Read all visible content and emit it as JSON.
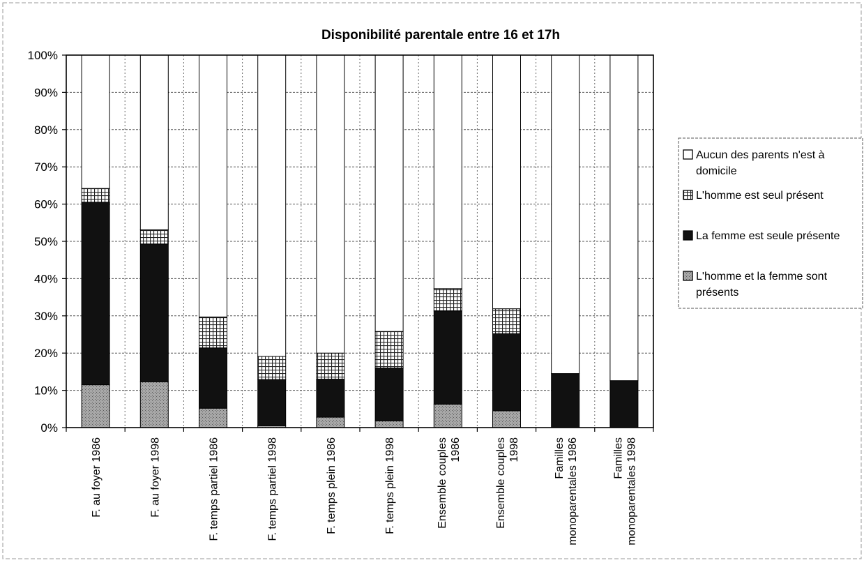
{
  "chart_data": {
    "type": "bar",
    "stacked": true,
    "percent": true,
    "title": "Disponibilité parentale entre 16 et 17h",
    "xlabel": "",
    "ylabel": "",
    "ylim": [
      0,
      100
    ],
    "y_ticks": [
      "0%",
      "10%",
      "20%",
      "30%",
      "40%",
      "50%",
      "60%",
      "70%",
      "80%",
      "90%",
      "100%"
    ],
    "grid": true,
    "legend_position": "right",
    "categories": [
      [
        "F. au foyer 1986"
      ],
      [
        "F. au foyer 1998"
      ],
      [
        "F. temps partiel 1986"
      ],
      [
        "F. temps partiel 1998"
      ],
      [
        "F. temps plein 1986"
      ],
      [
        "F. temps plein 1998"
      ],
      [
        "Ensemble couples",
        "1986"
      ],
      [
        "Ensemble couples",
        "1998"
      ],
      [
        "Familles",
        "monoparentales 1986"
      ],
      [
        "Familles",
        "monoparentales 1998"
      ]
    ],
    "series": [
      {
        "name": "L'homme et la femme sont présents",
        "legend_lines": [
          "L'homme et la femme sont",
          "présents"
        ],
        "pattern": "dots",
        "values": [
          11.5,
          12.3,
          5.2,
          0.5,
          2.8,
          1.8,
          6.3,
          4.5,
          0,
          0
        ]
      },
      {
        "name": "La femme est seule présente",
        "legend_lines": [
          "La femme est seule présente"
        ],
        "pattern": "solid",
        "values": [
          49,
          37,
          16.2,
          12.4,
          10.2,
          14.2,
          25,
          20.7,
          14.5,
          12.6
        ]
      },
      {
        "name": "L'homme est seul présent",
        "legend_lines": [
          "L'homme est seul présent"
        ],
        "pattern": "grid",
        "values": [
          3.7,
          3.8,
          8.3,
          6.2,
          7,
          9.8,
          6,
          6.7,
          0,
          0
        ]
      },
      {
        "name": "Aucun des parents n'est à domicile",
        "legend_lines": [
          "Aucun des parents n'est à",
          "domicile"
        ],
        "pattern": "white",
        "values": [
          35.8,
          46.9,
          70.3,
          80.9,
          80,
          74.2,
          62.7,
          68.1,
          85.5,
          87.4
        ]
      }
    ]
  }
}
